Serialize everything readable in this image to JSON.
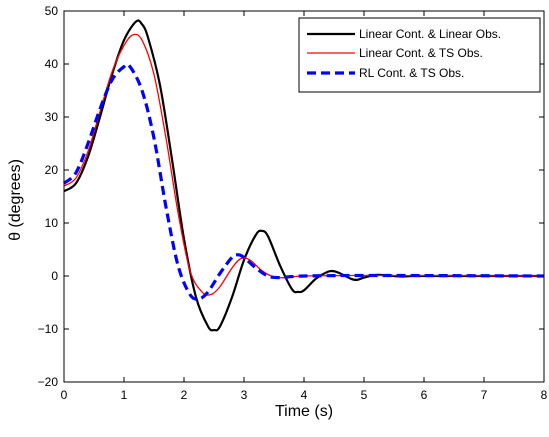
{
  "chart_data": {
    "type": "line",
    "title": "",
    "xlabel": "Time (s)",
    "ylabel": "θ (degrees)",
    "xlim": [
      0,
      8
    ],
    "ylim": [
      -20,
      50
    ],
    "xticks": [
      0,
      1,
      2,
      3,
      4,
      5,
      6,
      7,
      8
    ],
    "yticks": [
      -20,
      -10,
      0,
      10,
      20,
      30,
      40,
      50
    ],
    "xtick_labels": [
      "0",
      "1",
      "2",
      "3",
      "4",
      "5",
      "6",
      "7",
      "8"
    ],
    "ytick_labels": [
      "−20",
      "−10",
      "0",
      "10",
      "20",
      "30",
      "40",
      "50"
    ],
    "grid": false,
    "legend_position": "top-right",
    "series": [
      {
        "name": "Linear Cont. & Linear Obs.",
        "color": "#000000",
        "style": "solid",
        "points": [
          [
            0,
            16
          ],
          [
            0.2,
            17.5
          ],
          [
            0.4,
            22.5
          ],
          [
            0.6,
            30
          ],
          [
            0.8,
            38
          ],
          [
            1.0,
            44.5
          ],
          [
            1.2,
            48
          ],
          [
            1.3,
            47.5
          ],
          [
            1.4,
            45
          ],
          [
            1.6,
            36
          ],
          [
            1.8,
            22
          ],
          [
            2.0,
            7
          ],
          [
            2.2,
            -4
          ],
          [
            2.4,
            -9.5
          ],
          [
            2.5,
            -10.2
          ],
          [
            2.6,
            -9.5
          ],
          [
            2.8,
            -4
          ],
          [
            3.0,
            3
          ],
          [
            3.2,
            7.8
          ],
          [
            3.3,
            8.5
          ],
          [
            3.4,
            7.5
          ],
          [
            3.6,
            2
          ],
          [
            3.8,
            -2.5
          ],
          [
            3.9,
            -3
          ],
          [
            4.0,
            -2.7
          ],
          [
            4.2,
            -0.5
          ],
          [
            4.4,
            0.8
          ],
          [
            4.5,
            0.9
          ],
          [
            4.6,
            0.5
          ],
          [
            4.8,
            -0.6
          ],
          [
            4.9,
            -0.7
          ],
          [
            5.0,
            -0.3
          ],
          [
            5.2,
            0.2
          ],
          [
            5.4,
            0.1
          ],
          [
            5.6,
            -0.1
          ],
          [
            5.8,
            0
          ],
          [
            6.0,
            0
          ],
          [
            8.0,
            0
          ]
        ]
      },
      {
        "name": "Linear Cont. & TS Obs.",
        "color": "#ff0000",
        "style": "solid",
        "points": [
          [
            0,
            17
          ],
          [
            0.2,
            18.5
          ],
          [
            0.4,
            23.5
          ],
          [
            0.6,
            31
          ],
          [
            0.8,
            38.5
          ],
          [
            1.0,
            43.5
          ],
          [
            1.15,
            45.5
          ],
          [
            1.3,
            44.5
          ],
          [
            1.5,
            38
          ],
          [
            1.7,
            26
          ],
          [
            1.9,
            12
          ],
          [
            2.1,
            1
          ],
          [
            2.3,
            -3
          ],
          [
            2.45,
            -3.5
          ],
          [
            2.6,
            -2
          ],
          [
            2.8,
            1.5
          ],
          [
            2.95,
            3.3
          ],
          [
            3.1,
            3
          ],
          [
            3.3,
            1
          ],
          [
            3.5,
            -0.2
          ],
          [
            3.7,
            -0.3
          ],
          [
            4.0,
            0
          ],
          [
            5.0,
            0.1
          ],
          [
            5.3,
            0.1
          ],
          [
            8.0,
            0
          ]
        ]
      },
      {
        "name": "RL Cont. & TS Obs.",
        "color": "#0000ff",
        "style": "dashed",
        "points": [
          [
            0,
            17.5
          ],
          [
            0.2,
            19.5
          ],
          [
            0.4,
            25
          ],
          [
            0.6,
            31.5
          ],
          [
            0.8,
            37
          ],
          [
            1.0,
            39.5
          ],
          [
            1.1,
            39.5
          ],
          [
            1.3,
            35
          ],
          [
            1.5,
            26
          ],
          [
            1.7,
            13
          ],
          [
            1.9,
            2
          ],
          [
            2.1,
            -3.5
          ],
          [
            2.25,
            -4.3
          ],
          [
            2.4,
            -3
          ],
          [
            2.6,
            0.5
          ],
          [
            2.8,
            3.5
          ],
          [
            2.9,
            4
          ],
          [
            3.0,
            3.5
          ],
          [
            3.2,
            1.5
          ],
          [
            3.4,
            0
          ],
          [
            3.6,
            -0.3
          ],
          [
            4.0,
            0
          ],
          [
            5.3,
            0.1
          ],
          [
            8.0,
            0
          ]
        ]
      }
    ]
  }
}
